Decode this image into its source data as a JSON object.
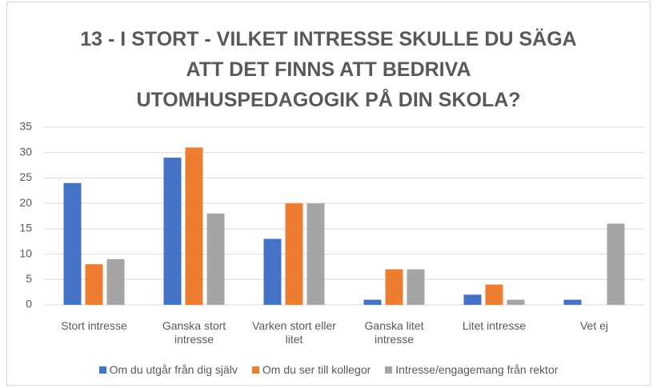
{
  "chart_data": {
    "type": "bar",
    "title": "13 - I STORT - VILKET INTRESSE SKULLE DU SÄGA\nATT DET FINNS ATT BEDRIVA\nUTOMHUSPEDAGOGIK PÅ DIN SKOLA?",
    "categories": [
      "Stort intresse",
      "Ganska stort intresse",
      "Varken stort eller litet",
      "Ganska litet intresse",
      "Litet intresse",
      "Vet ej"
    ],
    "series": [
      {
        "name": "Om du utgår från dig själv",
        "color": "#4472c4",
        "values": [
          24,
          29,
          13,
          1,
          2,
          1
        ]
      },
      {
        "name": "Om du ser till kollegor",
        "color": "#ed7d31",
        "values": [
          8,
          31,
          20,
          7,
          4,
          0
        ]
      },
      {
        "name": "Intresse/engagemang från rektor",
        "color": "#a5a5a5",
        "values": [
          9,
          18,
          20,
          7,
          1,
          16
        ]
      }
    ],
    "ylim": [
      0,
      35
    ],
    "yticks": [
      0,
      5,
      10,
      15,
      20,
      25,
      30,
      35
    ],
    "grid": true,
    "legend": "bottom"
  }
}
